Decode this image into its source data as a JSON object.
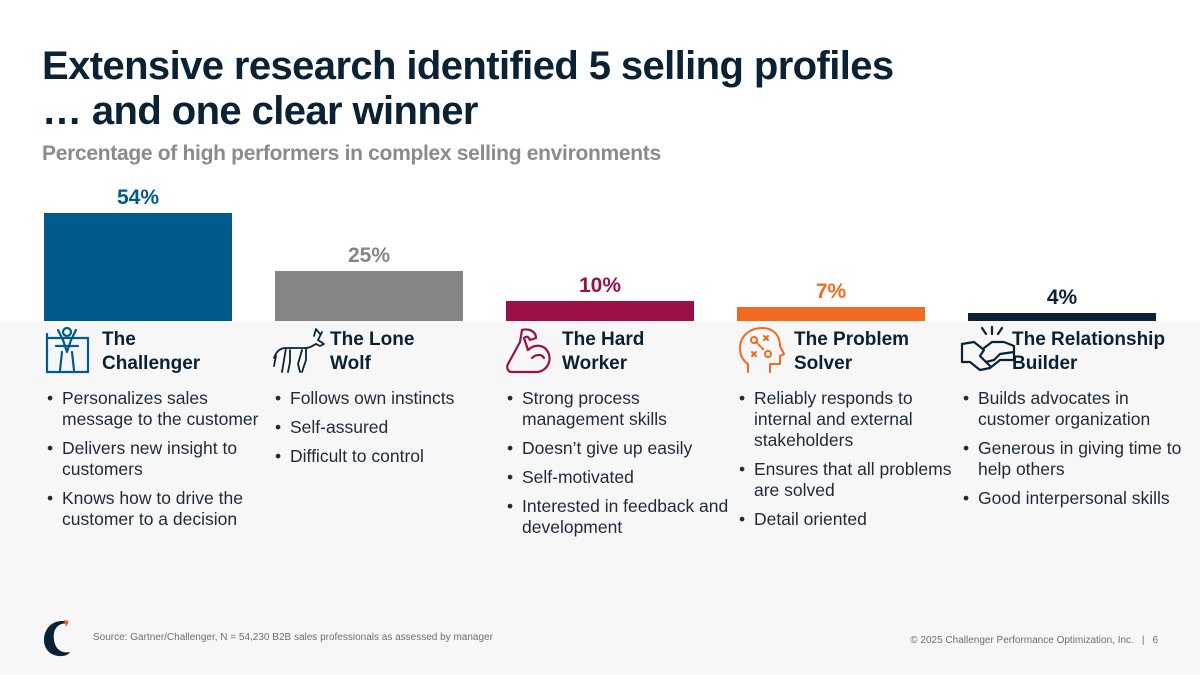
{
  "title_line1": "Extensive research identified 5 selling profiles",
  "title_line2": "… and one clear winner",
  "chart_data": {
    "type": "bar",
    "title": "Extensive research identified 5 selling profiles … and one clear winner",
    "subtitle": "Percentage of high performers in complex selling environments",
    "categories": [
      "The Challenger",
      "The Lone Wolf",
      "The Hard Worker",
      "The Problem Solver",
      "The Relationship Builder"
    ],
    "values": [
      54,
      25,
      10,
      7,
      4
    ],
    "value_labels": [
      "54%",
      "25%",
      "10%",
      "7%",
      "4%"
    ],
    "colors": [
      "#005b8c",
      "#858487",
      "#9b1048",
      "#f26a21",
      "#0b2134"
    ],
    "ylim": [
      0,
      54
    ],
    "grid": false,
    "legend": "none"
  },
  "profiles": [
    {
      "name": "The\nChallenger",
      "icon": "challenger-icon",
      "color": "#005b8c",
      "bullets": [
        "Personalizes sales message to the customer",
        "Delivers new insight to customers",
        "Knows how to drive the customer to a decision"
      ]
    },
    {
      "name": "The Lone\nWolf",
      "icon": "wolf-icon",
      "color": "#0b2134",
      "bullets": [
        "Follows own instincts",
        "Self-assured",
        "Difficult to control"
      ]
    },
    {
      "name": "The Hard\nWorker",
      "icon": "flexed-arm-icon",
      "color": "#9b1048",
      "bullets": [
        "Strong process management skills",
        "Doesn’t give up easily",
        "Self-motivated",
        "Interested in feedback and development"
      ]
    },
    {
      "name": "The Problem\nSolver",
      "icon": "head-strategy-icon",
      "color": "#f26a21",
      "bullets": [
        "Reliably responds to internal and external stakeholders",
        "Ensures that all problems are solved",
        "Detail oriented"
      ]
    },
    {
      "name": "The Relationship\nBuilder",
      "icon": "handshake-icon",
      "color": "#0b2134",
      "bullets": [
        "Builds advocates in customer organization",
        "Generous in giving time to help others",
        "Good interpersonal skills"
      ]
    }
  ],
  "footer": {
    "source": "Source: Gartner/Challenger, N = 54,230 B2B sales professionals as assessed by manager",
    "copyright": "© 2025 Challenger Performance Optimization, Inc.",
    "separator": "|",
    "page_number": "6",
    "logo_icon": "challenger-c-logo-icon",
    "logo_color": "#0b2134",
    "logo_accent": "#f26a21"
  }
}
